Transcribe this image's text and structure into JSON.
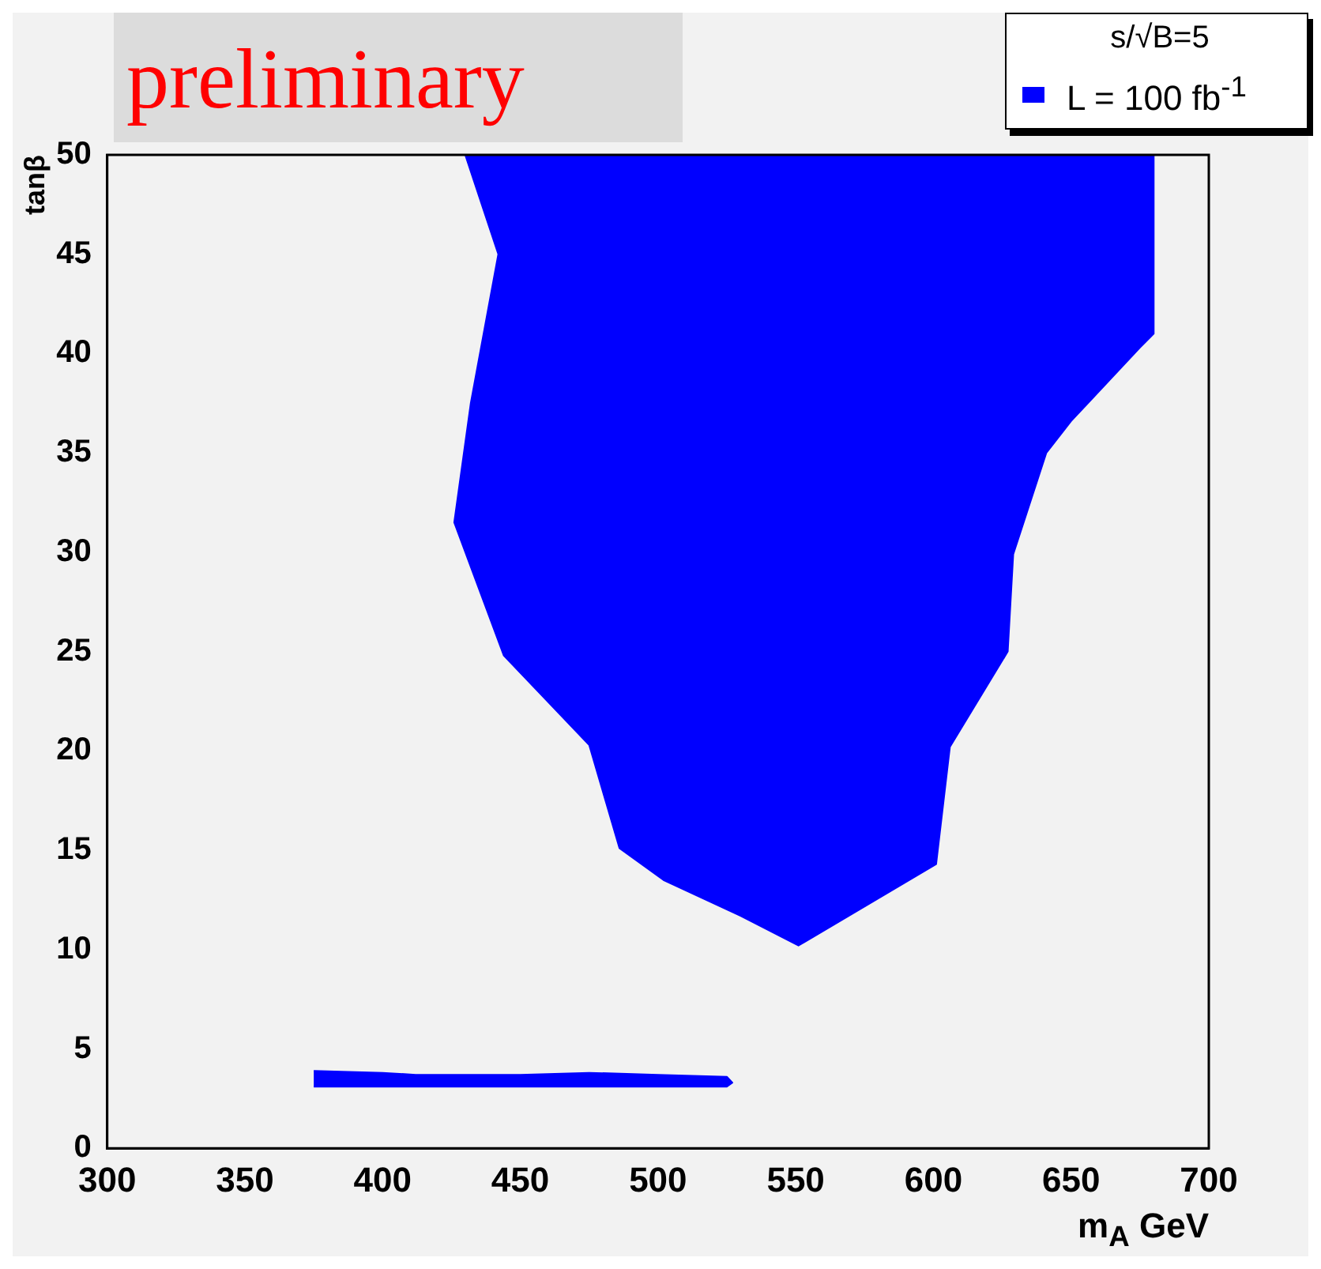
{
  "chart_data": {
    "type": "area",
    "xlabel": "m$_{A}$ GeV",
    "ylabel": "tanβ",
    "legend_title": "s/√B=5",
    "legend": "top right",
    "grid": false,
    "annotations": [
      "preliminary"
    ],
    "xlim": [
      300,
      700
    ],
    "xticks": [
      300,
      350,
      400,
      450,
      500,
      550,
      600,
      650,
      700
    ],
    "ylim": [
      0,
      50
    ],
    "yticks": [
      0,
      5,
      10,
      15,
      20,
      25,
      30,
      35,
      40,
      45,
      50
    ],
    "series": [
      {
        "name": "L = 100 fb$^{-1}$",
        "color": "#0000ff",
        "x": [
          430,
          442,
          432,
          426,
          444,
          475,
          486,
          502,
          530,
          551,
          601,
          606,
          627,
          629,
          641,
          650,
          675,
          680,
          680
        ],
        "values": [
          50,
          45,
          37.5,
          31.5,
          24.8,
          20.3,
          15.1,
          13.5,
          11.7,
          10.2,
          14.3,
          20.2,
          25,
          29.9,
          35,
          36.6,
          40.3,
          41,
          50
        ]
      },
      {
        "color": "#0000ff",
        "x": [
          375,
          400,
          412,
          450,
          475,
          500,
          525,
          527,
          525,
          375
        ],
        "values": [
          3.9,
          3.8,
          3.7,
          3.7,
          3.8,
          3.7,
          3.6,
          3.3,
          3.1,
          3.1
        ]
      }
    ]
  }
}
